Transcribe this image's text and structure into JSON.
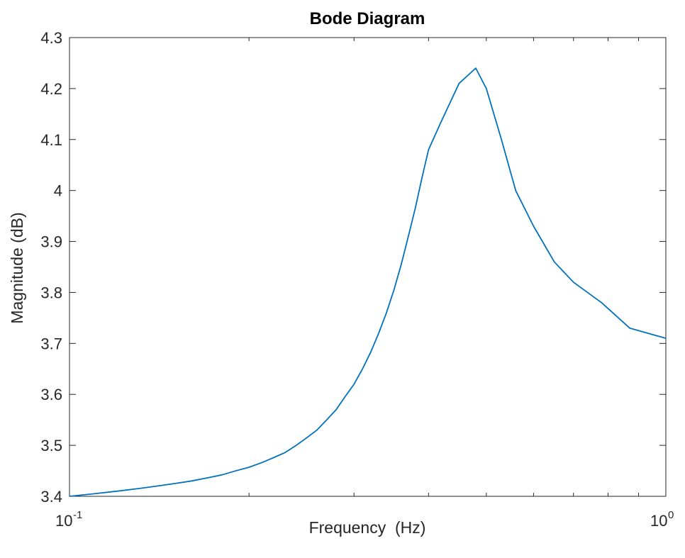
{
  "chart_data": {
    "type": "line",
    "title": "Bode Diagram",
    "xlabel": "Frequency  (Hz)",
    "ylabel": "Magnitude (dB)",
    "xscale": "log",
    "xlim": [
      0.1,
      1.0
    ],
    "ylim": [
      3.4,
      4.3
    ],
    "grid": false,
    "yticks": [
      "3.4",
      "3.5",
      "3.6",
      "3.7",
      "3.8",
      "3.9",
      "4",
      "4.1",
      "4.2",
      "4.3"
    ],
    "xticks": [
      {
        "value": 0.1,
        "base": "10",
        "exp": "-1"
      },
      {
        "value": 1.0,
        "base": "10",
        "exp": "0"
      }
    ],
    "series": [
      {
        "color": "#0072BD",
        "x": [
          0.1,
          0.11,
          0.12,
          0.13,
          0.14,
          0.15,
          0.16,
          0.17,
          0.18,
          0.19,
          0.2,
          0.21,
          0.22,
          0.23,
          0.24,
          0.25,
          0.26,
          0.27,
          0.28,
          0.29,
          0.3,
          0.31,
          0.32,
          0.33,
          0.34,
          0.35,
          0.36,
          0.37,
          0.38,
          0.39,
          0.4,
          0.42,
          0.45,
          0.48,
          0.5,
          0.53,
          0.56,
          0.6,
          0.65,
          0.7,
          0.78,
          0.87,
          1.0
        ],
        "y": [
          3.4,
          3.405,
          3.41,
          3.415,
          3.42,
          3.425,
          3.43,
          3.436,
          3.442,
          3.45,
          3.457,
          3.466,
          3.476,
          3.486,
          3.5,
          3.515,
          3.53,
          3.55,
          3.57,
          3.596,
          3.62,
          3.65,
          3.683,
          3.72,
          3.76,
          3.805,
          3.855,
          3.91,
          3.965,
          4.025,
          4.08,
          4.135,
          4.21,
          4.24,
          4.2,
          4.1,
          4.0,
          3.93,
          3.86,
          3.82,
          3.78,
          3.73,
          3.71
        ]
      }
    ]
  }
}
